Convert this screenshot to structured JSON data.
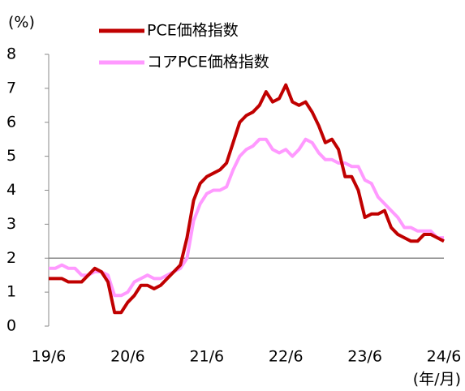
{
  "chart_data": {
    "type": "line",
    "y_unit_label": "(%)",
    "x_unit_label": "(年/月)",
    "categories": [
      "19/6",
      null,
      null,
      null,
      null,
      null,
      null,
      null,
      null,
      null,
      null,
      null,
      "20/6",
      null,
      null,
      null,
      null,
      null,
      null,
      null,
      null,
      null,
      null,
      null,
      "21/6",
      null,
      null,
      null,
      null,
      null,
      null,
      null,
      null,
      null,
      null,
      null,
      "22/6",
      null,
      null,
      null,
      null,
      null,
      null,
      null,
      null,
      null,
      null,
      null,
      "23/6",
      null,
      null,
      null,
      null,
      null,
      null,
      null,
      null,
      null,
      null,
      null,
      "24/6"
    ],
    "series": [
      {
        "name": "PCE価格指数",
        "color": "#c00000",
        "values": [
          1.4,
          1.4,
          1.4,
          1.3,
          1.3,
          1.3,
          1.5,
          1.7,
          1.6,
          1.3,
          0.4,
          0.4,
          0.7,
          0.9,
          1.2,
          1.2,
          1.1,
          1.2,
          1.4,
          1.6,
          1.8,
          2.6,
          3.7,
          4.2,
          4.4,
          4.5,
          4.6,
          4.8,
          5.4,
          6.0,
          6.2,
          6.3,
          6.5,
          6.9,
          6.6,
          6.7,
          7.1,
          6.6,
          6.5,
          6.6,
          6.3,
          5.9,
          5.4,
          5.5,
          5.2,
          4.4,
          4.4,
          4.0,
          3.2,
          3.3,
          3.3,
          3.4,
          2.9,
          2.7,
          2.6,
          2.5,
          2.5,
          2.7,
          2.7,
          2.6,
          2.5
        ]
      },
      {
        "name": "コアPCE価格指数",
        "color": "#ff99ff",
        "values": [
          1.7,
          1.7,
          1.8,
          1.7,
          1.7,
          1.5,
          1.5,
          1.6,
          1.6,
          1.5,
          0.9,
          0.9,
          1.0,
          1.3,
          1.4,
          1.5,
          1.4,
          1.4,
          1.5,
          1.6,
          1.7,
          2.0,
          3.1,
          3.6,
          3.9,
          4.0,
          4.0,
          4.1,
          4.6,
          5.0,
          5.2,
          5.3,
          5.5,
          5.5,
          5.2,
          5.1,
          5.2,
          5.0,
          5.2,
          5.5,
          5.4,
          5.1,
          4.9,
          4.9,
          4.8,
          4.8,
          4.7,
          4.7,
          4.3,
          4.2,
          3.8,
          3.6,
          3.4,
          3.2,
          2.9,
          2.9,
          2.8,
          2.8,
          2.8,
          2.6,
          2.6
        ]
      }
    ],
    "ylim": [
      0,
      8
    ],
    "yticks": [
      0,
      1,
      2,
      3,
      4,
      5,
      6,
      7,
      8
    ],
    "hline": 2,
    "legend": "top"
  }
}
